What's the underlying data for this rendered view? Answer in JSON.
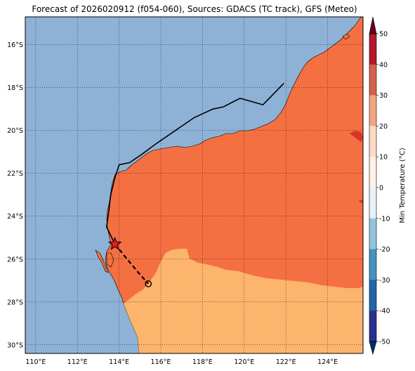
{
  "title": "Forecast of 2026020912 (f054-060), Sources: GDACS (TC track), GFS (Meteo)",
  "colorbar": {
    "label": "Min Temperature (°C)",
    "ticks": [
      "50",
      "40",
      "30",
      "20",
      "10",
      "0",
      "-10",
      "-20",
      "-30",
      "-40",
      "-50"
    ],
    "colors": [
      "#67001f",
      "#b2182b",
      "#d6604d",
      "#f4a582",
      "#fddbc7",
      "#f7f7f7",
      "#d1e5f0",
      "#92c5de",
      "#4393c3",
      "#2166ac",
      "#053061"
    ]
  },
  "map": {
    "ocean_color": "#8eb2d6",
    "land_band_colors": {
      "20_to_30": "#f47042",
      "10_to_20": "#fdb46d",
      "30_to_40": "#d93426"
    },
    "lat_labels": [
      "16°S",
      "18°S",
      "20°S",
      "22°S",
      "24°S",
      "26°S",
      "28°S",
      "30°S"
    ],
    "lon_labels": [
      "110°E",
      "112°E",
      "114°E",
      "116°E",
      "118°E",
      "120°E",
      "122°E",
      "124°E"
    ],
    "lat_range": [
      -30.4,
      -14.7
    ],
    "lon_range": [
      109.5,
      125.7
    ],
    "track_solid": [
      [
        121.9,
        -17.8
      ],
      [
        120.9,
        -18.8
      ],
      [
        119.8,
        -18.5
      ],
      [
        119.0,
        -18.9
      ],
      [
        118.5,
        -19.0
      ],
      [
        117.6,
        -19.4
      ],
      [
        116.7,
        -20.0
      ],
      [
        115.8,
        -20.6
      ],
      [
        115.1,
        -21.1
      ],
      [
        114.5,
        -21.5
      ],
      [
        114.0,
        -21.6
      ],
      [
        113.8,
        -22.2
      ],
      [
        113.6,
        -23.0
      ],
      [
        113.5,
        -23.8
      ],
      [
        113.4,
        -24.5
      ],
      [
        113.6,
        -24.9
      ],
      [
        113.8,
        -25.3
      ]
    ],
    "track_dashed": [
      [
        113.8,
        -25.3
      ],
      [
        114.3,
        -25.9
      ],
      [
        114.9,
        -26.6
      ],
      [
        115.4,
        -27.15
      ]
    ],
    "current_position": [
      113.8,
      -25.3
    ],
    "forecast_position": [
      115.4,
      -27.15
    ]
  }
}
